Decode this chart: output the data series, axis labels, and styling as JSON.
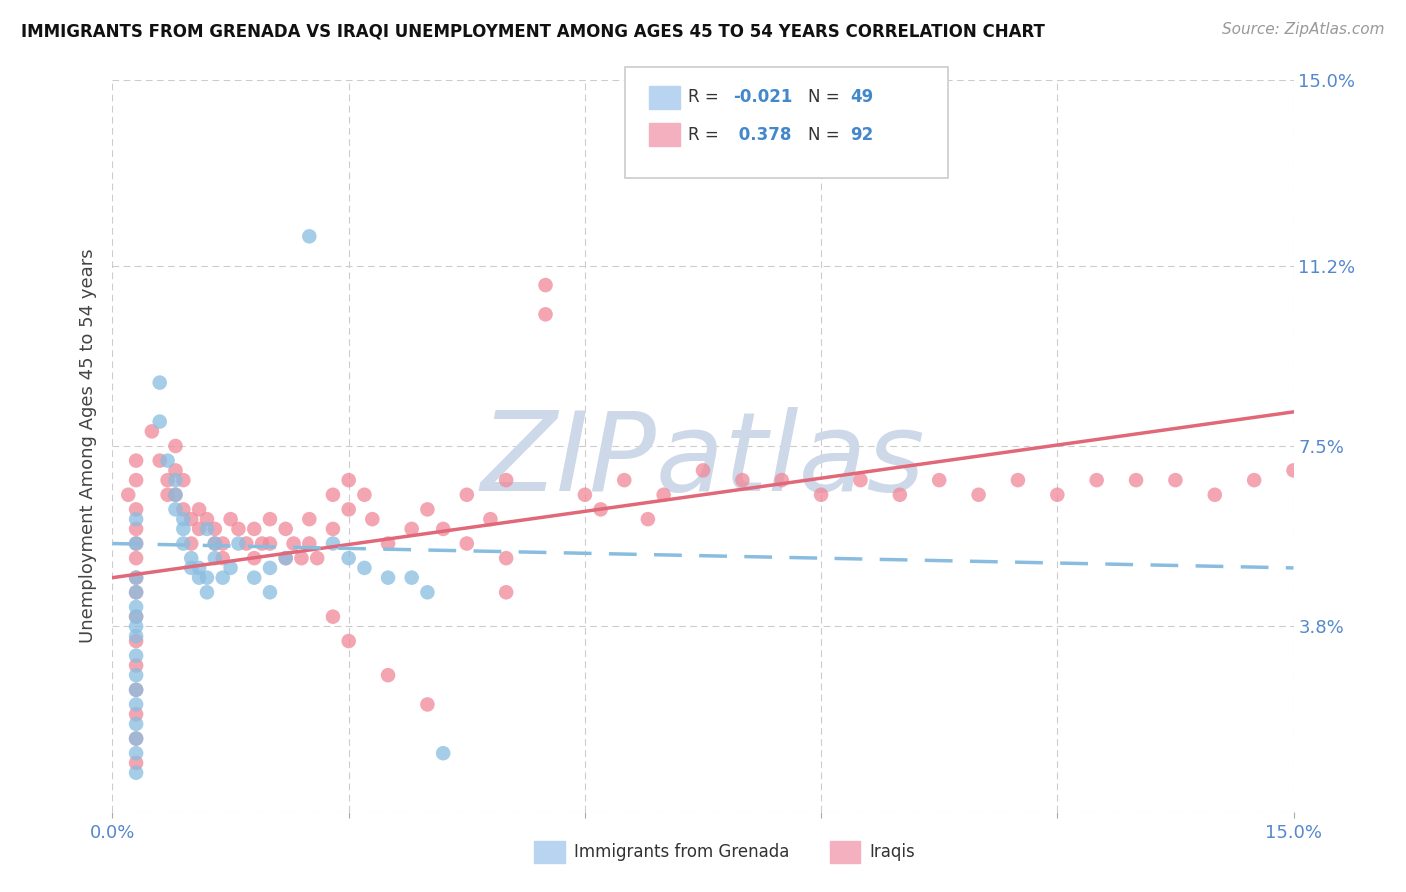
{
  "title": "IMMIGRANTS FROM GRENADA VS IRAQI UNEMPLOYMENT AMONG AGES 45 TO 54 YEARS CORRELATION CHART",
  "source": "Source: ZipAtlas.com",
  "ylabel": "Unemployment Among Ages 45 to 54 years",
  "xlim": [
    0.0,
    0.15
  ],
  "ylim": [
    0.0,
    0.15
  ],
  "xtick_positions": [
    0.0,
    0.03,
    0.06,
    0.09,
    0.12,
    0.15
  ],
  "xticklabels": [
    "0.0%",
    "",
    "",
    "",
    "",
    "15.0%"
  ],
  "ytick_positions": [
    0.0,
    0.038,
    0.075,
    0.112,
    0.15
  ],
  "ytick_labels_right": [
    "",
    "3.8%",
    "7.5%",
    "11.2%",
    "15.0%"
  ],
  "grenada_color": "#89bde0",
  "iraqi_color": "#f08898",
  "grenada_line_color": "#89bde0",
  "iraqi_line_color": "#e06878",
  "watermark": "ZIPatlas",
  "watermark_color": "#cdd8e8",
  "grenada_scatter": [
    [
      0.003,
      0.06
    ],
    [
      0.003,
      0.055
    ],
    [
      0.003,
      0.048
    ],
    [
      0.003,
      0.045
    ],
    [
      0.003,
      0.042
    ],
    [
      0.003,
      0.04
    ],
    [
      0.003,
      0.038
    ],
    [
      0.003,
      0.036
    ],
    [
      0.003,
      0.032
    ],
    [
      0.003,
      0.028
    ],
    [
      0.003,
      0.025
    ],
    [
      0.003,
      0.022
    ],
    [
      0.003,
      0.018
    ],
    [
      0.003,
      0.015
    ],
    [
      0.003,
      0.012
    ],
    [
      0.003,
      0.008
    ],
    [
      0.006,
      0.088
    ],
    [
      0.006,
      0.08
    ],
    [
      0.007,
      0.072
    ],
    [
      0.008,
      0.068
    ],
    [
      0.008,
      0.065
    ],
    [
      0.008,
      0.062
    ],
    [
      0.009,
      0.06
    ],
    [
      0.009,
      0.058
    ],
    [
      0.009,
      0.055
    ],
    [
      0.01,
      0.052
    ],
    [
      0.01,
      0.05
    ],
    [
      0.011,
      0.05
    ],
    [
      0.011,
      0.048
    ],
    [
      0.012,
      0.058
    ],
    [
      0.012,
      0.048
    ],
    [
      0.012,
      0.045
    ],
    [
      0.013,
      0.055
    ],
    [
      0.013,
      0.052
    ],
    [
      0.014,
      0.048
    ],
    [
      0.015,
      0.05
    ],
    [
      0.016,
      0.055
    ],
    [
      0.018,
      0.048
    ],
    [
      0.02,
      0.05
    ],
    [
      0.02,
      0.045
    ],
    [
      0.022,
      0.052
    ],
    [
      0.025,
      0.118
    ],
    [
      0.028,
      0.055
    ],
    [
      0.03,
      0.052
    ],
    [
      0.032,
      0.05
    ],
    [
      0.035,
      0.048
    ],
    [
      0.038,
      0.048
    ],
    [
      0.04,
      0.045
    ],
    [
      0.042,
      0.012
    ]
  ],
  "iraqi_scatter": [
    [
      0.002,
      0.065
    ],
    [
      0.003,
      0.072
    ],
    [
      0.003,
      0.068
    ],
    [
      0.003,
      0.062
    ],
    [
      0.003,
      0.058
    ],
    [
      0.003,
      0.055
    ],
    [
      0.003,
      0.052
    ],
    [
      0.003,
      0.048
    ],
    [
      0.003,
      0.045
    ],
    [
      0.003,
      0.04
    ],
    [
      0.003,
      0.035
    ],
    [
      0.003,
      0.03
    ],
    [
      0.003,
      0.025
    ],
    [
      0.003,
      0.02
    ],
    [
      0.003,
      0.015
    ],
    [
      0.003,
      0.01
    ],
    [
      0.005,
      0.078
    ],
    [
      0.006,
      0.072
    ],
    [
      0.007,
      0.068
    ],
    [
      0.007,
      0.065
    ],
    [
      0.008,
      0.075
    ],
    [
      0.008,
      0.07
    ],
    [
      0.008,
      0.065
    ],
    [
      0.009,
      0.068
    ],
    [
      0.009,
      0.062
    ],
    [
      0.01,
      0.06
    ],
    [
      0.01,
      0.055
    ],
    [
      0.011,
      0.062
    ],
    [
      0.011,
      0.058
    ],
    [
      0.012,
      0.06
    ],
    [
      0.013,
      0.058
    ],
    [
      0.013,
      0.055
    ],
    [
      0.014,
      0.055
    ],
    [
      0.014,
      0.052
    ],
    [
      0.015,
      0.06
    ],
    [
      0.016,
      0.058
    ],
    [
      0.017,
      0.055
    ],
    [
      0.018,
      0.058
    ],
    [
      0.018,
      0.052
    ],
    [
      0.019,
      0.055
    ],
    [
      0.02,
      0.06
    ],
    [
      0.02,
      0.055
    ],
    [
      0.022,
      0.058
    ],
    [
      0.022,
      0.052
    ],
    [
      0.023,
      0.055
    ],
    [
      0.024,
      0.052
    ],
    [
      0.025,
      0.06
    ],
    [
      0.025,
      0.055
    ],
    [
      0.026,
      0.052
    ],
    [
      0.028,
      0.065
    ],
    [
      0.028,
      0.058
    ],
    [
      0.03,
      0.068
    ],
    [
      0.03,
      0.062
    ],
    [
      0.032,
      0.065
    ],
    [
      0.033,
      0.06
    ],
    [
      0.035,
      0.055
    ],
    [
      0.038,
      0.058
    ],
    [
      0.04,
      0.062
    ],
    [
      0.042,
      0.058
    ],
    [
      0.045,
      0.065
    ],
    [
      0.045,
      0.055
    ],
    [
      0.048,
      0.06
    ],
    [
      0.05,
      0.068
    ],
    [
      0.05,
      0.045
    ],
    [
      0.055,
      0.108
    ],
    [
      0.055,
      0.102
    ],
    [
      0.06,
      0.065
    ],
    [
      0.062,
      0.062
    ],
    [
      0.065,
      0.068
    ],
    [
      0.068,
      0.06
    ],
    [
      0.07,
      0.065
    ],
    [
      0.075,
      0.07
    ],
    [
      0.08,
      0.068
    ],
    [
      0.085,
      0.068
    ],
    [
      0.09,
      0.065
    ],
    [
      0.095,
      0.068
    ],
    [
      0.1,
      0.065
    ],
    [
      0.105,
      0.068
    ],
    [
      0.11,
      0.065
    ],
    [
      0.115,
      0.068
    ],
    [
      0.12,
      0.065
    ],
    [
      0.125,
      0.068
    ],
    [
      0.13,
      0.068
    ],
    [
      0.135,
      0.068
    ],
    [
      0.14,
      0.065
    ],
    [
      0.145,
      0.068
    ],
    [
      0.15,
      0.07
    ],
    [
      0.05,
      0.052
    ],
    [
      0.028,
      0.04
    ],
    [
      0.03,
      0.035
    ],
    [
      0.035,
      0.028
    ],
    [
      0.04,
      0.022
    ]
  ],
  "grenada_trend_x": [
    0.0,
    0.15
  ],
  "grenada_trend_y": [
    0.055,
    0.05
  ],
  "iraqi_trend_x": [
    0.0,
    0.15
  ],
  "iraqi_trend_y": [
    0.048,
    0.082
  ],
  "grid_color": "#cccccc",
  "background_color": "#ffffff",
  "title_fontsize": 12,
  "source_fontsize": 11,
  "tick_fontsize": 13,
  "ylabel_fontsize": 13
}
